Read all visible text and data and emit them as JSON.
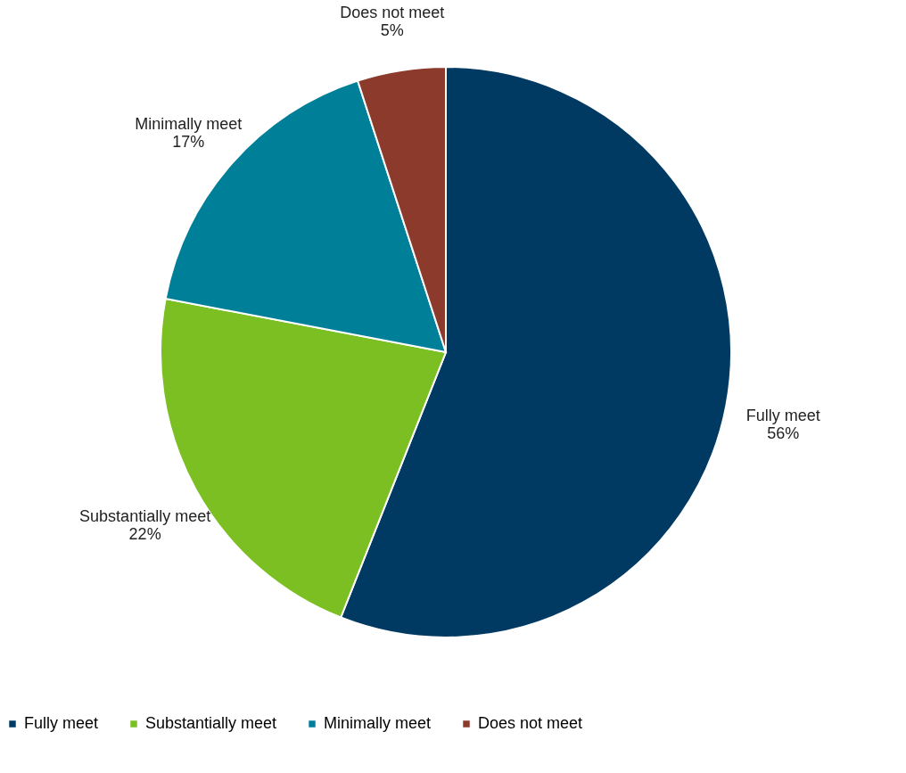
{
  "chart_data": {
    "type": "pie",
    "categories": [
      "Fully meet",
      "Substantially meet",
      "Minimally meet",
      "Does not meet"
    ],
    "values": [
      56,
      22,
      17,
      5
    ],
    "colors": [
      "#003a63",
      "#7bbf22",
      "#007f99",
      "#8b3a2b"
    ],
    "value_labels": [
      "56%",
      "22%",
      "17%",
      "5%"
    ],
    "legend": "bottom"
  }
}
